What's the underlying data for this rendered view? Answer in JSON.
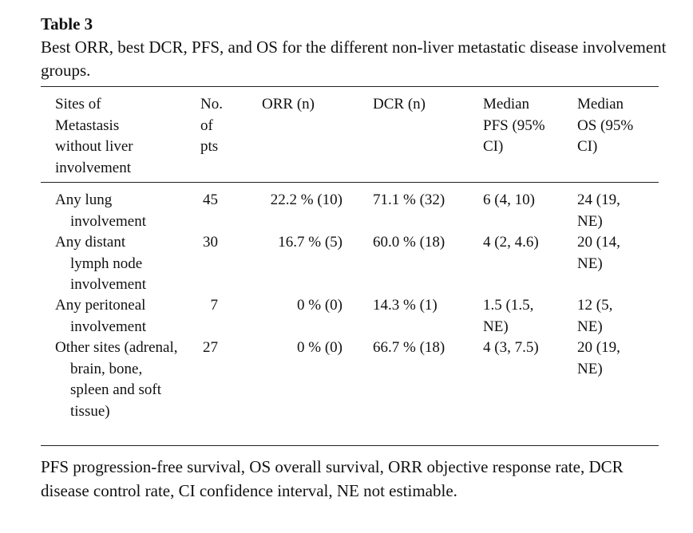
{
  "table": {
    "label": "Table 3",
    "caption": "Best ORR, best DCR, PFS, and OS for the different non-liver metastatic disease involvement groups.",
    "headers": {
      "site": "Sites of Metastasis without liver involvement",
      "pts": "No. of pts",
      "orr": "ORR (n)",
      "dcr": "DCR (n)",
      "pfs": "Median PFS (95% CI)",
      "os": "Median OS (95% CI)"
    },
    "rows": [
      {
        "site": "Any lung involvement",
        "pts": "45",
        "orr": "22.2 % (10)",
        "dcr": "71.1 % (32)",
        "pfs": "6 (4, 10)",
        "os": "24 (19, NE)"
      },
      {
        "site": "Any distant lymph node involvement",
        "pts": "30",
        "orr": "16.7 % (5)",
        "dcr": "60.0 % (18)",
        "pfs": "4 (2, 4.6)",
        "os": "20 (14, NE)"
      },
      {
        "site": "Any peritoneal involvement",
        "pts": "7",
        "orr": "0 % (0)",
        "dcr": "14.3 % (1)",
        "pfs": "1.5 (1.5, NE)",
        "os": "12 (5, NE)"
      },
      {
        "site": "Other sites (adrenal, brain, bone, spleen and soft tissue)",
        "pts": "27",
        "orr": "0 % (0)",
        "dcr": "66.7 % (18)",
        "pfs": "4 (3, 7.5)",
        "os": "20 (19, NE)"
      }
    ],
    "footnote": "PFS progression-free survival, OS overall survival, ORR objective response rate, DCR disease control rate, CI confidence interval, NE not estimable."
  }
}
